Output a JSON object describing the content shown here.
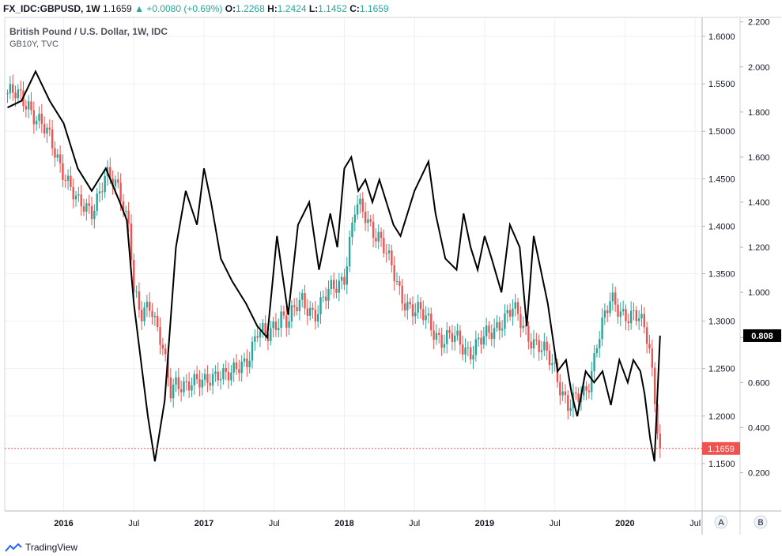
{
  "header": {
    "symbol": "FX_IDC:GBPUSD, 1W",
    "last": "1.1659",
    "change": "+0.0080 (+0.69%)",
    "o_label": "O:",
    "o_value": "1.2268",
    "h_label": "H:",
    "h_value": "1.2424",
    "l_label": "L:",
    "l_value": "1.1452",
    "c_label": "C:",
    "c_value": "1.1659"
  },
  "footer": {
    "brand": "TradingView"
  },
  "colors": {
    "up": "#26a69a",
    "down": "#ef5350",
    "line": "#000000",
    "grid": "#eef0f3"
  },
  "chart_data": {
    "type": "line",
    "title": "British Pound / U.S. Dollar, 1W, IDC",
    "subtitle": "GB10Y, TVC",
    "x_ticks": [
      "2016",
      "Jul",
      "2017",
      "Jul",
      "2018",
      "Jul",
      "2019",
      "Jul",
      "2020",
      "Jul"
    ],
    "left_axis": {
      "ticks": [
        "1.6000",
        "1.5500",
        "1.5000",
        "1.4500",
        "1.4000",
        "1.3500",
        "1.3000",
        "1.2500",
        "1.2000",
        "1.1500"
      ],
      "range": [
        1.1,
        1.62
      ],
      "last_value_label": "1.1659",
      "last_value": 1.1659
    },
    "right_axis": {
      "ticks": [
        "2.200",
        "2.000",
        "1.800",
        "1.600",
        "1.400",
        "1.200",
        "1.000",
        "0.800",
        "0.600",
        "0.400",
        "0.200"
      ],
      "range": [
        0.03,
        2.22
      ],
      "last_value_label": "0.808",
      "last_value": 0.808
    },
    "scale_buttons": [
      "A",
      "B"
    ],
    "grid": true,
    "series": [
      {
        "name": "FX_IDC:GBPUSD",
        "style": "candles",
        "x": [
          2015.6,
          2015.75,
          2015.9,
          2016.0,
          2016.1,
          2016.2,
          2016.3,
          2016.4,
          2016.47,
          2016.5,
          2016.55,
          2016.62,
          2016.7,
          2016.76,
          2016.8,
          2016.9,
          2017.0,
          2017.1,
          2017.2,
          2017.3,
          2017.38,
          2017.45,
          2017.55,
          2017.6,
          2017.7,
          2017.8,
          2017.9,
          2018.0,
          2018.08,
          2018.15,
          2018.25,
          2018.32,
          2018.4,
          2018.5,
          2018.6,
          2018.7,
          2018.8,
          2018.9,
          2019.0,
          2019.1,
          2019.2,
          2019.3,
          2019.4,
          2019.5,
          2019.55,
          2019.6,
          2019.7,
          2019.75,
          2019.8,
          2019.85,
          2019.9,
          2020.0,
          2020.1,
          2020.17,
          2020.2,
          2020.25
        ],
        "close": [
          1.54,
          1.53,
          1.49,
          1.46,
          1.42,
          1.42,
          1.45,
          1.44,
          1.4,
          1.33,
          1.3,
          1.32,
          1.28,
          1.22,
          1.23,
          1.24,
          1.23,
          1.25,
          1.24,
          1.26,
          1.29,
          1.28,
          1.31,
          1.3,
          1.32,
          1.31,
          1.33,
          1.35,
          1.42,
          1.41,
          1.39,
          1.36,
          1.33,
          1.31,
          1.3,
          1.28,
          1.28,
          1.27,
          1.28,
          1.3,
          1.31,
          1.29,
          1.27,
          1.25,
          1.23,
          1.21,
          1.22,
          1.24,
          1.28,
          1.3,
          1.32,
          1.31,
          1.3,
          1.28,
          1.24,
          1.1659
        ]
      },
      {
        "name": "GB10Y, TVC",
        "style": "line",
        "x": [
          2015.6,
          2015.7,
          2015.8,
          2015.9,
          2016.0,
          2016.1,
          2016.2,
          2016.3,
          2016.4,
          2016.45,
          2016.5,
          2016.55,
          2016.6,
          2016.65,
          2016.72,
          2016.8,
          2016.87,
          2016.95,
          2017.0,
          2017.05,
          2017.12,
          2017.2,
          2017.3,
          2017.38,
          2017.45,
          2017.52,
          2017.6,
          2017.67,
          2017.75,
          2017.82,
          2017.9,
          2017.95,
          2018.0,
          2018.05,
          2018.1,
          2018.15,
          2018.2,
          2018.25,
          2018.3,
          2018.35,
          2018.4,
          2018.5,
          2018.6,
          2018.65,
          2018.72,
          2018.8,
          2018.85,
          2018.9,
          2018.95,
          2019.0,
          2019.05,
          2019.12,
          2019.18,
          2019.25,
          2019.3,
          2019.35,
          2019.45,
          2019.52,
          2019.58,
          2019.62,
          2019.66,
          2019.72,
          2019.78,
          2019.84,
          2019.9,
          2019.96,
          2020.02,
          2020.06,
          2020.11,
          2020.14,
          2020.18,
          2020.21,
          2020.25
        ],
        "values": [
          1.82,
          1.85,
          1.98,
          1.85,
          1.75,
          1.55,
          1.45,
          1.55,
          1.4,
          1.32,
          0.95,
          0.7,
          0.45,
          0.25,
          0.52,
          1.2,
          1.45,
          1.3,
          1.55,
          1.4,
          1.15,
          1.05,
          0.95,
          0.85,
          0.8,
          1.25,
          0.9,
          1.3,
          1.4,
          1.1,
          1.35,
          1.2,
          1.55,
          1.6,
          1.45,
          1.5,
          1.4,
          1.5,
          1.4,
          1.3,
          1.25,
          1.45,
          1.58,
          1.35,
          1.15,
          1.1,
          1.35,
          1.2,
          1.1,
          1.25,
          1.15,
          1.0,
          1.3,
          1.2,
          0.85,
          1.25,
          0.95,
          0.65,
          0.7,
          0.55,
          0.45,
          0.65,
          0.6,
          0.65,
          0.5,
          0.7,
          0.6,
          0.7,
          0.65,
          0.55,
          0.35,
          0.25,
          0.808
        ]
      }
    ]
  }
}
